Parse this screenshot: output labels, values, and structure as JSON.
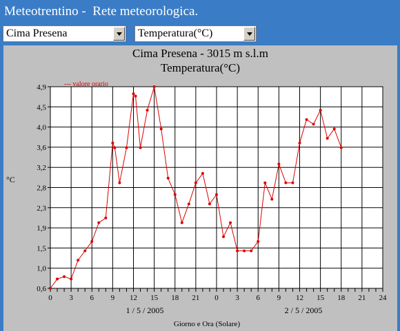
{
  "app": {
    "title": "Meteotrentino -  Rete meteorologica."
  },
  "controls": {
    "station_select": "Cima Presena",
    "variable_select": "Temperatura(°C)"
  },
  "chart": {
    "title": "Cima Presena - 3015 m s.l.m",
    "subtitle": "Temperatura(°C)",
    "legend": "--- valore orario",
    "ylabel": "°C",
    "xlabel": "Giorno e Ora (Solare)",
    "day1": "1 / 5 / 2005",
    "day2": "2 / 5 / 2005",
    "colors": {
      "line": "#dd0000",
      "grid": "#000000",
      "plot_bg": "#ffffff",
      "panel_bg": "#c0c0c0",
      "header_bg": "#3a7cc6"
    }
  },
  "chart_data": {
    "type": "line",
    "ylim": [
      0.6,
      4.9
    ],
    "ytick_labels": [
      "0,6",
      "1,0",
      "1,5",
      "1,9",
      "2,3",
      "2,8",
      "3,2",
      "3,6",
      "4,0",
      "4,5",
      "4,9"
    ],
    "xtick_labels": [
      "0",
      "3",
      "6",
      "9",
      "12",
      "15",
      "18",
      "21",
      "0",
      "3",
      "6",
      "9",
      "12",
      "15",
      "18",
      "21",
      "24"
    ],
    "xlim_hours": [
      0,
      48
    ],
    "grid": true,
    "series": [
      {
        "name": "valore orario",
        "x": [
          0,
          1,
          2,
          3,
          4,
          5,
          6,
          7,
          8,
          9,
          9.3,
          10,
          11,
          12,
          12.3,
          13,
          14,
          15,
          16,
          17,
          18,
          19,
          20,
          21,
          22,
          23,
          24,
          25,
          26,
          27,
          28,
          29,
          30,
          31,
          32,
          33,
          34,
          35,
          36,
          37,
          38,
          39,
          40,
          41,
          42
        ],
        "y": [
          0.6,
          0.8,
          0.85,
          0.8,
          1.2,
          1.4,
          1.6,
          2.0,
          2.1,
          3.7,
          3.6,
          2.85,
          3.6,
          4.75,
          4.7,
          3.6,
          4.4,
          4.9,
          4.0,
          2.95,
          2.6,
          2.0,
          2.4,
          2.85,
          3.05,
          2.4,
          2.6,
          1.7,
          2.0,
          1.4,
          1.4,
          1.4,
          1.6,
          2.85,
          2.5,
          3.25,
          2.85,
          2.85,
          3.7,
          4.2,
          4.1,
          4.4,
          3.8,
          4.0,
          3.6
        ]
      }
    ]
  }
}
